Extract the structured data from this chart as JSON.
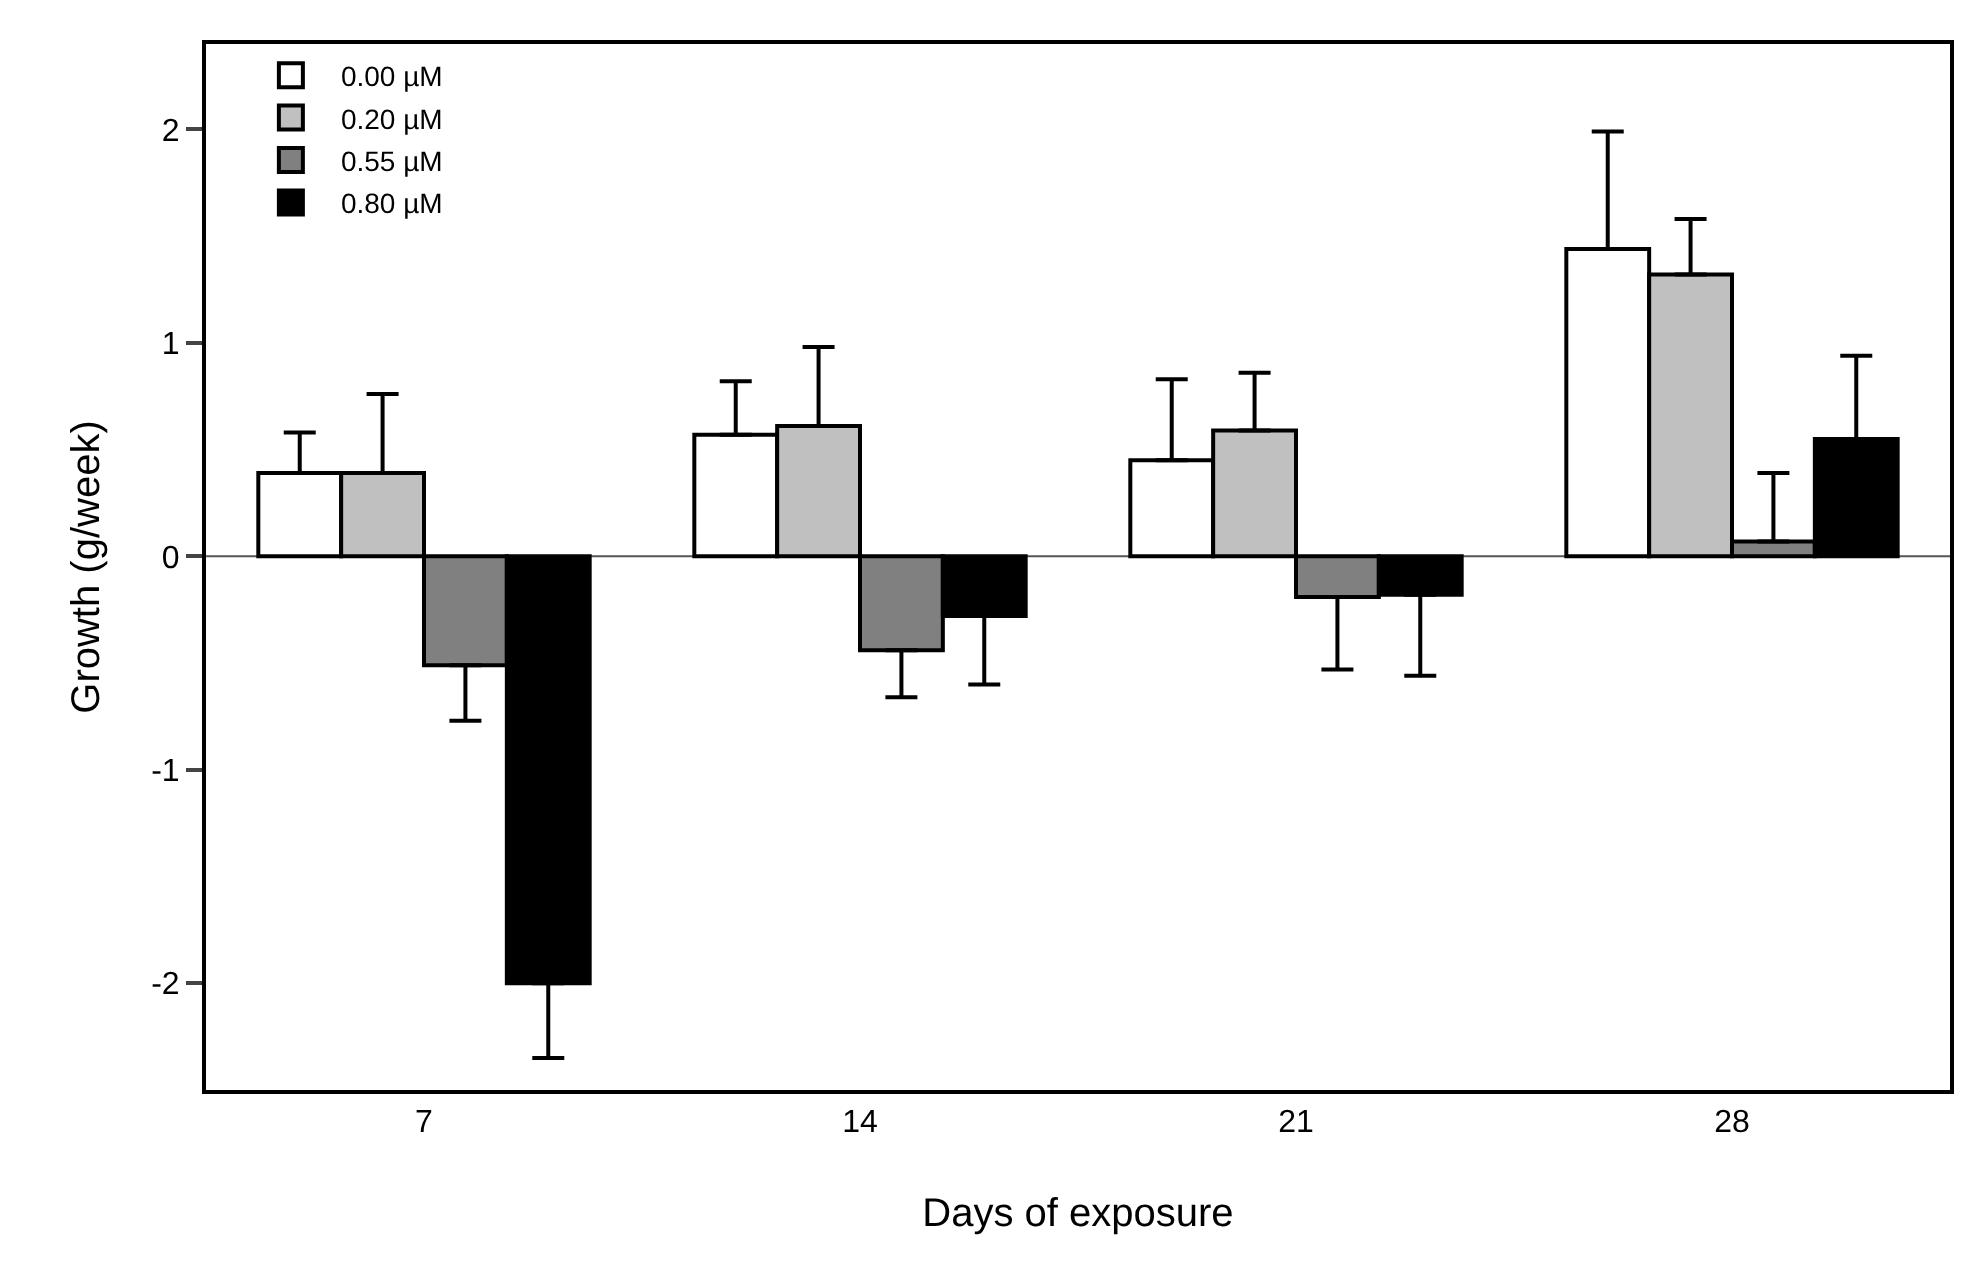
{
  "chart_data": {
    "type": "bar",
    "xlabel": "Days of exposure",
    "ylabel": "Growth (g/week)",
    "categories": [
      "7",
      "14",
      "21",
      "28"
    ],
    "series": [
      {
        "name": "0.00 µM",
        "color": "#ffffff",
        "values": [
          0.39,
          0.57,
          0.45,
          1.44
        ],
        "errors": [
          [
            0.39,
            0.58
          ],
          [
            0.57,
            0.82
          ],
          [
            0.45,
            0.83
          ],
          [
            1.44,
            1.99
          ]
        ]
      },
      {
        "name": "0.20 µM",
        "color": "#c0c0c0",
        "values": [
          0.39,
          0.61,
          0.59,
          1.32
        ],
        "errors": [
          [
            0.39,
            0.76
          ],
          [
            0.61,
            0.98
          ],
          [
            0.59,
            0.86
          ],
          [
            1.32,
            1.58
          ]
        ]
      },
      {
        "name": "0.55 µM",
        "color": "#808080",
        "values": [
          -0.51,
          -0.44,
          -0.19,
          0.07
        ],
        "errors": [
          [
            -0.77,
            -0.51
          ],
          [
            -0.66,
            -0.44
          ],
          [
            -0.53,
            -0.19
          ],
          [
            0.07,
            0.39
          ]
        ]
      },
      {
        "name": "0.80 µM",
        "color": "#000000",
        "values": [
          -2.0,
          -0.28,
          -0.18,
          0.55
        ],
        "errors": [
          [
            -2.35,
            -2.0
          ],
          [
            -0.6,
            -0.28
          ],
          [
            -0.56,
            -0.18
          ],
          [
            0.55,
            0.94
          ]
        ]
      }
    ],
    "ylim": [
      -2.5,
      2.4
    ],
    "yticks": [
      -2,
      -1,
      0,
      1,
      2
    ],
    "ref_lines": [
      {
        "axis": "y",
        "value": 0,
        "color": "#555555"
      }
    ],
    "grid": false,
    "legend": "top left"
  }
}
